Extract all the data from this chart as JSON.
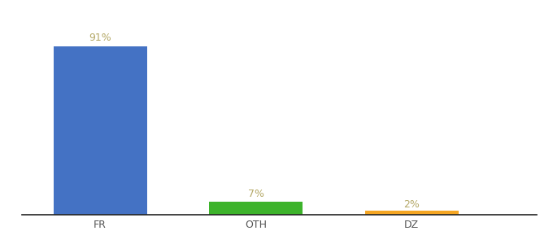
{
  "categories": [
    "FR",
    "OTH",
    "DZ"
  ],
  "values": [
    91,
    7,
    2
  ],
  "bar_colors": [
    "#4472C4",
    "#3DB32B",
    "#F5A623"
  ],
  "labels": [
    "91%",
    "7%",
    "2%"
  ],
  "ylim": [
    0,
    100
  ],
  "background_color": "#ffffff",
  "label_color": "#b5a968",
  "xlabel_color": "#555555",
  "bar_width": 0.6,
  "label_fontsize": 9,
  "xlabel_fontsize": 9,
  "x_positions": [
    0,
    1,
    2
  ],
  "xlim": [
    -0.5,
    2.8
  ]
}
